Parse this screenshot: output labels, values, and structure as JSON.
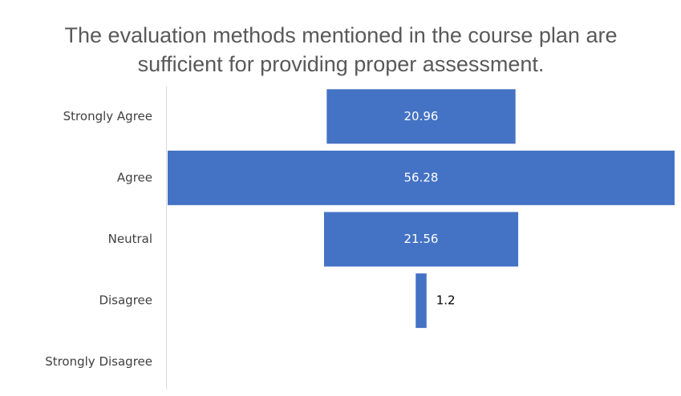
{
  "chart_data": {
    "type": "funnel",
    "title": "The evaluation methods mentioned in the course plan are sufficient for providing proper assessment.",
    "categories": [
      "Strongly Agree",
      "Agree",
      "Neutral",
      "Disagree",
      "Strongly Disagree"
    ],
    "values": [
      20.96,
      56.28,
      21.56,
      1.2,
      0
    ],
    "value_labels": [
      "20.96",
      "56.28",
      "21.56",
      "1.2",
      null
    ],
    "color": "#4472c4"
  }
}
